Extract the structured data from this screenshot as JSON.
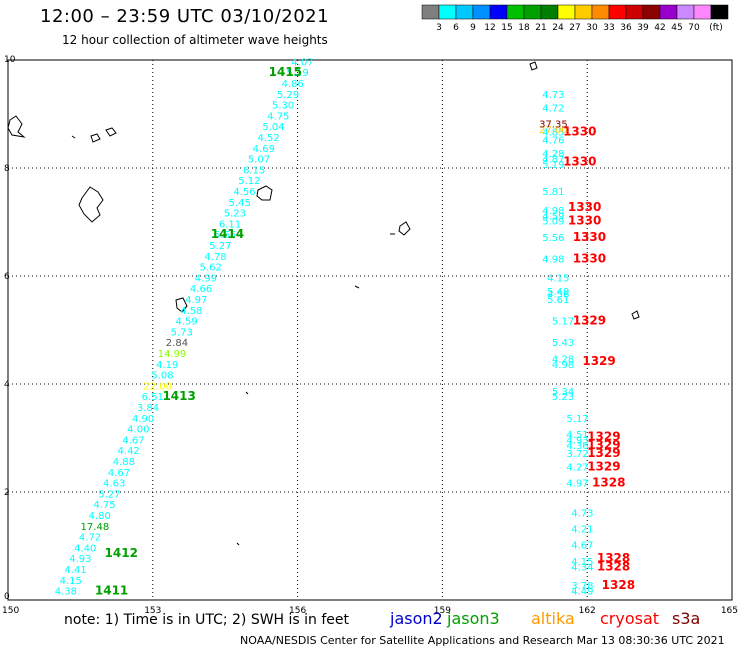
{
  "header": {
    "title": "12:00 – 23:59 UTC 03/10/2021",
    "subtitle": "12 hour collection of altimeter wave heights"
  },
  "footer": {
    "note": "note: 1) Time is in UTC; 2) SWH is in feet",
    "credit": "NOAA/NESDIS Center for Satellite Applications and Research    Mar 13 08:30:36 UTC 2021"
  },
  "legend_scale": {
    "unit": "(ft)",
    "bins": [
      {
        "label": "",
        "color": "#7f7f7f"
      },
      {
        "label": "3",
        "color": "#00ffff"
      },
      {
        "label": "6",
        "color": "#00c8ff"
      },
      {
        "label": "9",
        "color": "#0090ff"
      },
      {
        "label": "12",
        "color": "#0000ff"
      },
      {
        "label": "15",
        "color": "#00c000"
      },
      {
        "label": "18",
        "color": "#00a000"
      },
      {
        "label": "21",
        "color": "#008000"
      },
      {
        "label": "24",
        "color": "#ffff00"
      },
      {
        "label": "27",
        "color": "#ffcc00"
      },
      {
        "label": "30",
        "color": "#ff8c00"
      },
      {
        "label": "33",
        "color": "#ff0000"
      },
      {
        "label": "36",
        "color": "#cc0000"
      },
      {
        "label": "39",
        "color": "#8b0000"
      },
      {
        "label": "42",
        "color": "#9900cc"
      },
      {
        "label": "45",
        "color": "#cc88ff"
      },
      {
        "label": "70",
        "color": "#ff88ff"
      },
      {
        "label": "",
        "color": "#000000"
      }
    ]
  },
  "satellites": [
    {
      "name": "jason2",
      "color": "#0000cc"
    },
    {
      "name": "jason3",
      "color": "#00a000"
    },
    {
      "name": "altika",
      "color": "#ff9900"
    },
    {
      "name": "cryosat",
      "color": "#ff0000"
    },
    {
      "name": "s3a",
      "color": "#800000"
    }
  ],
  "map": {
    "x_ticks": [
      "150",
      "153",
      "156",
      "159",
      "162",
      "165"
    ],
    "y_ticks": [
      "0",
      "2",
      "4",
      "6",
      "8",
      "10"
    ],
    "lon_range": [
      150,
      165
    ],
    "lat_range": [
      0,
      10
    ]
  },
  "tracks": [
    {
      "satellite": "jason3",
      "points": [
        {
          "lon": 151.2,
          "lat": 0.1,
          "v": "4.38",
          "c": "#00ffff"
        },
        {
          "lon": 151.3,
          "lat": 0.3,
          "v": "4.15",
          "c": "#00ffff"
        },
        {
          "lon": 151.4,
          "lat": 0.5,
          "v": "4.41",
          "c": "#00ffff"
        },
        {
          "lon": 151.5,
          "lat": 0.7,
          "v": "4.93",
          "c": "#00ffff"
        },
        {
          "lon": 151.6,
          "lat": 0.9,
          "v": "4.40",
          "c": "#00ffff"
        },
        {
          "lon": 151.7,
          "lat": 1.1,
          "v": "4.72",
          "c": "#00ffff"
        },
        {
          "lon": 151.8,
          "lat": 1.3,
          "v": "17.48",
          "c": "#00a000"
        },
        {
          "lon": 151.9,
          "lat": 1.5,
          "v": "4.80",
          "c": "#00ffff"
        },
        {
          "lon": 152.0,
          "lat": 1.7,
          "v": "4.75",
          "c": "#00ffff"
        },
        {
          "lon": 152.1,
          "lat": 1.9,
          "v": "5.27",
          "c": "#00ffff"
        },
        {
          "lon": 152.2,
          "lat": 2.1,
          "v": "4.63",
          "c": "#00ffff"
        },
        {
          "lon": 152.3,
          "lat": 2.3,
          "v": "4.67",
          "c": "#00ffff"
        },
        {
          "lon": 152.4,
          "lat": 2.5,
          "v": "4.88",
          "c": "#00ffff"
        },
        {
          "lon": 152.5,
          "lat": 2.7,
          "v": "4.42",
          "c": "#00ffff"
        },
        {
          "lon": 152.6,
          "lat": 2.9,
          "v": "4.67",
          "c": "#00ffff"
        },
        {
          "lon": 152.7,
          "lat": 3.1,
          "v": "4.00",
          "c": "#00ffff"
        },
        {
          "lon": 152.8,
          "lat": 3.3,
          "v": "4.90",
          "c": "#00ffff"
        },
        {
          "lon": 152.9,
          "lat": 3.5,
          "v": "3.84",
          "c": "#00ffff"
        },
        {
          "lon": 153.0,
          "lat": 3.7,
          "v": "6.51",
          "c": "#00ffff"
        },
        {
          "lon": 153.1,
          "lat": 3.9,
          "v": "22.00",
          "c": "#ffff00"
        },
        {
          "lon": 153.2,
          "lat": 4.1,
          "v": "5.08",
          "c": "#00ffff"
        },
        {
          "lon": 153.3,
          "lat": 4.3,
          "v": "4.19",
          "c": "#00ffff"
        },
        {
          "lon": 153.4,
          "lat": 4.5,
          "v": "14.99",
          "c": "#88ff00"
        },
        {
          "lon": 153.5,
          "lat": 4.7,
          "v": "2.84",
          "c": "#555555"
        },
        {
          "lon": 153.6,
          "lat": 4.9,
          "v": "5.73",
          "c": "#00ffff"
        },
        {
          "lon": 153.7,
          "lat": 5.1,
          "v": "4.59",
          "c": "#00ffff"
        },
        {
          "lon": 153.8,
          "lat": 5.3,
          "v": "4.58",
          "c": "#00ffff"
        },
        {
          "lon": 153.9,
          "lat": 5.5,
          "v": "4.97",
          "c": "#00ffff"
        },
        {
          "lon": 154.0,
          "lat": 5.7,
          "v": "4.66",
          "c": "#00ffff"
        },
        {
          "lon": 154.1,
          "lat": 5.9,
          "v": "4.99",
          "c": "#00ffff"
        },
        {
          "lon": 154.2,
          "lat": 6.1,
          "v": "5.62",
          "c": "#00ffff"
        },
        {
          "lon": 154.3,
          "lat": 6.3,
          "v": "4.78",
          "c": "#00ffff"
        },
        {
          "lon": 154.4,
          "lat": 6.5,
          "v": "5.27",
          "c": "#00ffff"
        },
        {
          "lon": 154.5,
          "lat": 6.7,
          "v": "5.65",
          "c": "#00ffff"
        },
        {
          "lon": 154.6,
          "lat": 6.9,
          "v": "6.11",
          "c": "#00ffff"
        },
        {
          "lon": 154.7,
          "lat": 7.1,
          "v": "5.23",
          "c": "#00ffff"
        },
        {
          "lon": 154.8,
          "lat": 7.3,
          "v": "5.45",
          "c": "#00ffff"
        },
        {
          "lon": 154.9,
          "lat": 7.5,
          "v": "4.56",
          "c": "#00ffff"
        },
        {
          "lon": 155.0,
          "lat": 7.7,
          "v": "5.12",
          "c": "#00ffff"
        },
        {
          "lon": 155.1,
          "lat": 7.9,
          "v": "6.15",
          "c": "#00ffff"
        },
        {
          "lon": 155.2,
          "lat": 8.1,
          "v": "5.07",
          "c": "#00ffff"
        },
        {
          "lon": 155.3,
          "lat": 8.3,
          "v": "4.69",
          "c": "#00ffff"
        },
        {
          "lon": 155.4,
          "lat": 8.5,
          "v": "4.52",
          "c": "#00ffff"
        },
        {
          "lon": 155.5,
          "lat": 8.7,
          "v": "5.04",
          "c": "#00ffff"
        },
        {
          "lon": 155.6,
          "lat": 8.9,
          "v": "4.75",
          "c": "#00ffff"
        },
        {
          "lon": 155.7,
          "lat": 9.1,
          "v": "5.30",
          "c": "#00ffff"
        },
        {
          "lon": 155.8,
          "lat": 9.3,
          "v": "5.29",
          "c": "#00ffff"
        },
        {
          "lon": 155.9,
          "lat": 9.5,
          "v": "4.86",
          "c": "#00ffff"
        },
        {
          "lon": 156.0,
          "lat": 9.7,
          "v": "5.19",
          "c": "#00ffff"
        },
        {
          "lon": 156.1,
          "lat": 9.9,
          "v": "4.07",
          "c": "#00ffff"
        }
      ],
      "times": [
        {
          "lon": 151.8,
          "lat": 0.1,
          "t": "1411"
        },
        {
          "lon": 152.0,
          "lat": 0.8,
          "t": "1412"
        },
        {
          "lon": 153.2,
          "lat": 3.7,
          "t": "1413"
        },
        {
          "lon": 154.2,
          "lat": 6.7,
          "t": "1414"
        },
        {
          "lon": 155.4,
          "lat": 9.7,
          "t": "1415"
        }
      ]
    },
    {
      "satellite": "cryosat",
      "points": [
        {
          "lon": 161.9,
          "lat": 0.1,
          "v": "4.49",
          "c": "#00ffff"
        },
        {
          "lon": 161.9,
          "lat": 0.2,
          "v": "3.78",
          "c": "#00ffff"
        },
        {
          "lon": 161.9,
          "lat": 0.55,
          "v": "4.34",
          "c": "#00ffff"
        },
        {
          "lon": 161.9,
          "lat": 0.65,
          "v": "4.15",
          "c": "#00ffff"
        },
        {
          "lon": 161.9,
          "lat": 0.95,
          "v": "4.67",
          "c": "#00ffff"
        },
        {
          "lon": 161.9,
          "lat": 1.25,
          "v": "4.21",
          "c": "#00ffff"
        },
        {
          "lon": 161.9,
          "lat": 1.55,
          "v": "4.73",
          "c": "#00ffff"
        },
        {
          "lon": 161.8,
          "lat": 2.1,
          "v": "4.97",
          "c": "#00ffff"
        },
        {
          "lon": 161.8,
          "lat": 2.4,
          "v": "4.27",
          "c": "#00ffff"
        },
        {
          "lon": 161.8,
          "lat": 2.65,
          "v": "3.72",
          "c": "#00ffff"
        },
        {
          "lon": 161.8,
          "lat": 2.8,
          "v": "4.36",
          "c": "#00ffff"
        },
        {
          "lon": 161.8,
          "lat": 2.9,
          "v": "4.93",
          "c": "#00ffff"
        },
        {
          "lon": 161.8,
          "lat": 3.0,
          "v": "4.51",
          "c": "#00ffff"
        },
        {
          "lon": 161.8,
          "lat": 3.3,
          "v": "5.17",
          "c": "#00ffff"
        },
        {
          "lon": 161.5,
          "lat": 3.7,
          "v": "5.23",
          "c": "#00ffff"
        },
        {
          "lon": 161.5,
          "lat": 3.8,
          "v": "5.34",
          "c": "#00ffff"
        },
        {
          "lon": 161.5,
          "lat": 4.3,
          "v": "4.98",
          "c": "#00ffff"
        },
        {
          "lon": 161.5,
          "lat": 4.4,
          "v": "4.28",
          "c": "#00ffff"
        },
        {
          "lon": 161.5,
          "lat": 4.7,
          "v": "5.43",
          "c": "#00ffff"
        },
        {
          "lon": 161.5,
          "lat": 5.1,
          "v": "5.17",
          "c": "#00ffff"
        },
        {
          "lon": 161.4,
          "lat": 5.5,
          "v": "5.61",
          "c": "#00ffff"
        },
        {
          "lon": 161.4,
          "lat": 5.6,
          "v": "4.56",
          "c": "#00ffff"
        },
        {
          "lon": 161.4,
          "lat": 5.65,
          "v": "5.49",
          "c": "#00ffff"
        },
        {
          "lon": 161.4,
          "lat": 5.9,
          "v": "4.15",
          "c": "#00ffff"
        },
        {
          "lon": 161.3,
          "lat": 6.25,
          "v": "4.98",
          "c": "#00ffff"
        },
        {
          "lon": 161.3,
          "lat": 6.65,
          "v": "5.56",
          "c": "#00ffff"
        },
        {
          "lon": 161.3,
          "lat": 6.95,
          "v": "5.09",
          "c": "#00ffff"
        },
        {
          "lon": 161.3,
          "lat": 7.05,
          "v": "4.59",
          "c": "#00ffff"
        },
        {
          "lon": 161.3,
          "lat": 7.15,
          "v": "4.98",
          "c": "#00ffff"
        },
        {
          "lon": 161.3,
          "lat": 7.5,
          "v": "5.81",
          "c": "#00ffff"
        },
        {
          "lon": 161.3,
          "lat": 8.0,
          "v": "5.19",
          "c": "#00ffff"
        },
        {
          "lon": 161.3,
          "lat": 8.1,
          "v": "4.87",
          "c": "#00ffff"
        },
        {
          "lon": 161.3,
          "lat": 8.2,
          "v": "4.28",
          "c": "#00ffff"
        },
        {
          "lon": 161.3,
          "lat": 8.45,
          "v": "4.76",
          "c": "#00ffff"
        },
        {
          "lon": 161.3,
          "lat": 8.6,
          "v": "4.85",
          "c": "#00ffff"
        },
        {
          "lon": 161.3,
          "lat": 8.65,
          "v": "27.00",
          "c": "#ffcc00"
        },
        {
          "lon": 161.3,
          "lat": 8.75,
          "v": "37.35",
          "c": "#8b0000"
        },
        {
          "lon": 161.3,
          "lat": 9.05,
          "v": "4.72",
          "c": "#00ffff"
        },
        {
          "lon": 161.3,
          "lat": 9.3,
          "v": "4.73",
          "c": "#00ffff"
        }
      ],
      "times": [
        {
          "lon": 162.3,
          "lat": 0.2,
          "t": "1328"
        },
        {
          "lon": 162.2,
          "lat": 0.55,
          "t": "1328"
        },
        {
          "lon": 162.2,
          "lat": 0.7,
          "t": "1328"
        },
        {
          "lon": 162.1,
          "lat": 2.1,
          "t": "1328"
        },
        {
          "lon": 162.0,
          "lat": 2.4,
          "t": "1329"
        },
        {
          "lon": 162.0,
          "lat": 2.65,
          "t": "1329"
        },
        {
          "lon": 162.0,
          "lat": 2.8,
          "t": "1329"
        },
        {
          "lon": 162.0,
          "lat": 2.95,
          "t": "1329"
        },
        {
          "lon": 161.9,
          "lat": 4.35,
          "t": "1329"
        },
        {
          "lon": 161.7,
          "lat": 5.1,
          "t": "1329"
        },
        {
          "lon": 161.7,
          "lat": 6.25,
          "t": "1330"
        },
        {
          "lon": 161.7,
          "lat": 6.65,
          "t": "1330"
        },
        {
          "lon": 161.6,
          "lat": 6.95,
          "t": "1330"
        },
        {
          "lon": 161.6,
          "lat": 7.2,
          "t": "1330"
        },
        {
          "lon": 161.5,
          "lat": 8.05,
          "t": "1330"
        },
        {
          "lon": 161.5,
          "lat": 8.6,
          "t": "1330"
        }
      ]
    }
  ]
}
